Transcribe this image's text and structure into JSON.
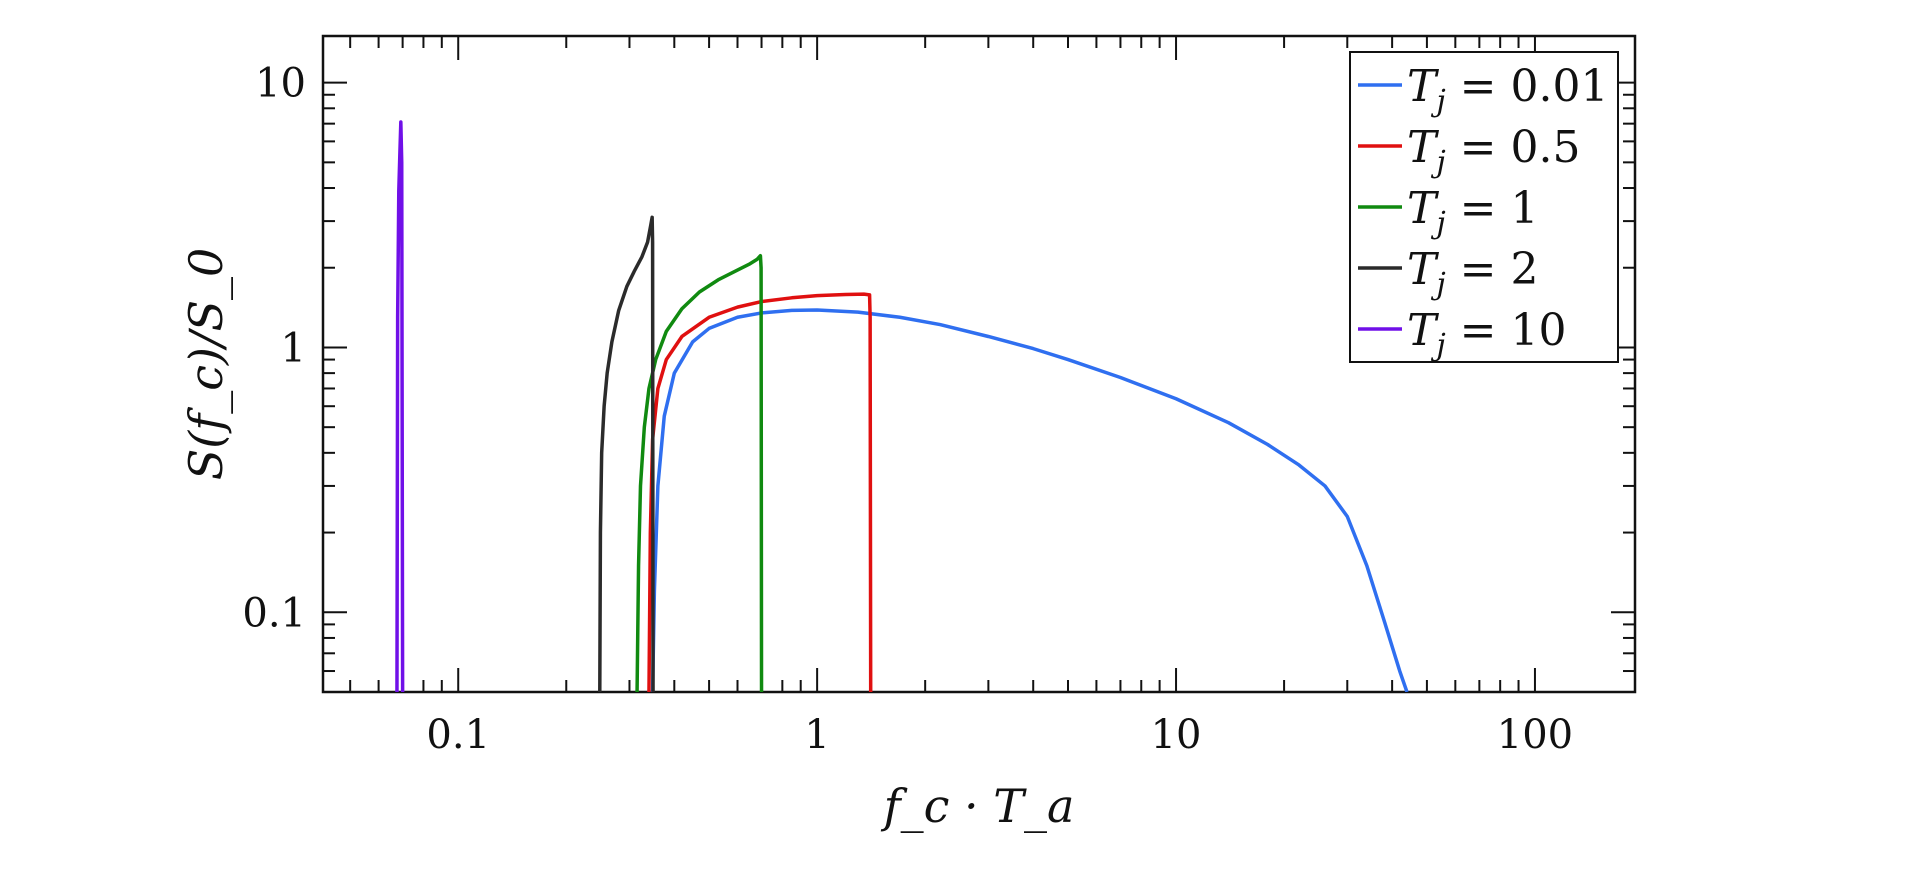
{
  "chart_data": {
    "type": "line",
    "xlabel": "f_c · T_a",
    "ylabel": "S(f_c)/S_0",
    "xscale": "log",
    "yscale": "log",
    "xlim": [
      0.042,
      190
    ],
    "ylim": [
      0.05,
      15
    ],
    "xticks": [
      {
        "value": 0.1,
        "label": "0.1"
      },
      {
        "value": 1,
        "label": "1"
      },
      {
        "value": 10,
        "label": "10"
      },
      {
        "value": 100,
        "label": "100"
      }
    ],
    "yticks": [
      {
        "value": 0.1,
        "label": "0.1"
      },
      {
        "value": 1,
        "label": "1"
      },
      {
        "value": 10,
        "label": "10"
      }
    ],
    "grid": false,
    "legend_position": "top-right",
    "series": [
      {
        "name": "T_j = 0.01",
        "legend_sub": "j",
        "legend_value": "0.01",
        "color": "#2f6ff0",
        "points": [
          [
            0.348,
            0.05
          ],
          [
            0.352,
            0.12
          ],
          [
            0.36,
            0.3
          ],
          [
            0.375,
            0.55
          ],
          [
            0.4,
            0.8
          ],
          [
            0.45,
            1.05
          ],
          [
            0.5,
            1.18
          ],
          [
            0.6,
            1.3
          ],
          [
            0.7,
            1.35
          ],
          [
            0.85,
            1.38
          ],
          [
            1.0,
            1.385
          ],
          [
            1.3,
            1.36
          ],
          [
            1.7,
            1.3
          ],
          [
            2.2,
            1.22
          ],
          [
            3,
            1.1
          ],
          [
            4,
            0.99
          ],
          [
            5,
            0.9
          ],
          [
            7,
            0.77
          ],
          [
            10,
            0.64
          ],
          [
            14,
            0.52
          ],
          [
            18,
            0.43
          ],
          [
            22,
            0.36
          ],
          [
            26,
            0.3
          ],
          [
            30,
            0.23
          ],
          [
            34,
            0.15
          ],
          [
            38,
            0.093
          ],
          [
            42,
            0.06
          ],
          [
            44,
            0.05
          ]
        ]
      },
      {
        "name": "T_j = 0.5",
        "legend_sub": "j",
        "legend_value": "0.5",
        "color": "#e01010",
        "points": [
          [
            0.34,
            0.05
          ],
          [
            0.343,
            0.2
          ],
          [
            0.348,
            0.45
          ],
          [
            0.36,
            0.7
          ],
          [
            0.38,
            0.9
          ],
          [
            0.42,
            1.1
          ],
          [
            0.5,
            1.3
          ],
          [
            0.6,
            1.42
          ],
          [
            0.7,
            1.49
          ],
          [
            0.85,
            1.54
          ],
          [
            1.0,
            1.57
          ],
          [
            1.2,
            1.585
          ],
          [
            1.35,
            1.59
          ],
          [
            1.4,
            1.58
          ],
          [
            1.405,
            1.3
          ],
          [
            1.41,
            0.05
          ]
        ]
      },
      {
        "name": "T_j = 1",
        "legend_sub": "j",
        "legend_value": "1",
        "color": "#108a10",
        "points": [
          [
            0.315,
            0.05
          ],
          [
            0.318,
            0.15
          ],
          [
            0.322,
            0.3
          ],
          [
            0.33,
            0.5
          ],
          [
            0.34,
            0.7
          ],
          [
            0.355,
            0.9
          ],
          [
            0.38,
            1.15
          ],
          [
            0.42,
            1.4
          ],
          [
            0.47,
            1.62
          ],
          [
            0.53,
            1.8
          ],
          [
            0.6,
            1.96
          ],
          [
            0.65,
            2.07
          ],
          [
            0.68,
            2.15
          ],
          [
            0.695,
            2.22
          ],
          [
            0.698,
            2.0
          ],
          [
            0.7,
            0.05
          ]
        ]
      },
      {
        "name": "T_j = 2",
        "legend_sub": "j",
        "legend_value": "2",
        "color": "#2b2b2b",
        "points": [
          [
            0.248,
            0.05
          ],
          [
            0.249,
            0.2
          ],
          [
            0.251,
            0.4
          ],
          [
            0.255,
            0.6
          ],
          [
            0.26,
            0.8
          ],
          [
            0.268,
            1.05
          ],
          [
            0.28,
            1.38
          ],
          [
            0.295,
            1.7
          ],
          [
            0.31,
            1.95
          ],
          [
            0.325,
            2.2
          ],
          [
            0.337,
            2.5
          ],
          [
            0.344,
            2.9
          ],
          [
            0.347,
            3.1
          ],
          [
            0.348,
            2.5
          ],
          [
            0.349,
            0.05
          ]
        ]
      },
      {
        "name": "T_j = 10",
        "legend_sub": "j",
        "legend_value": "10",
        "color": "#7010e8",
        "points": [
          [
            0.0675,
            0.05
          ],
          [
            0.0678,
            1.3
          ],
          [
            0.0683,
            3.9
          ],
          [
            0.0688,
            5.5
          ],
          [
            0.0692,
            7.1
          ],
          [
            0.0696,
            5.0
          ],
          [
            0.07,
            0.05
          ]
        ]
      }
    ]
  }
}
